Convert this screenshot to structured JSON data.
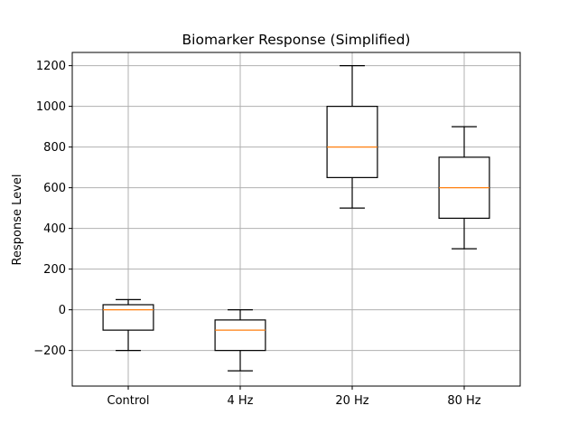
{
  "chart_data": {
    "type": "box",
    "title": "Biomarker Response (Simplified)",
    "xlabel": "",
    "ylabel": "Response Level",
    "ylim": [
      -375,
      1265
    ],
    "yticks": [
      -200,
      0,
      200,
      400,
      600,
      800,
      1000,
      1200
    ],
    "ytick_labels": [
      "−200",
      "0",
      "200",
      "400",
      "600",
      "800",
      "1000",
      "1200"
    ],
    "grid": true,
    "categories": [
      "Control",
      "4 Hz",
      "20 Hz",
      "80 Hz"
    ],
    "boxes": [
      {
        "category": "Control",
        "whisker_low": -200,
        "q1": -100,
        "median": 0,
        "q3": 25,
        "whisker_high": 50
      },
      {
        "category": "4 Hz",
        "whisker_low": -300,
        "q1": -200,
        "median": -100,
        "q3": -50,
        "whisker_high": 0
      },
      {
        "category": "20 Hz",
        "whisker_low": 500,
        "q1": 650,
        "median": 800,
        "q3": 1000,
        "whisker_high": 1200
      },
      {
        "category": "80 Hz",
        "whisker_low": 300,
        "q1": 450,
        "median": 600,
        "q3": 750,
        "whisker_high": 900
      }
    ],
    "colors": {
      "box": "#000000",
      "median": "#ff7f0e",
      "grid": "#b0b0b0"
    }
  }
}
